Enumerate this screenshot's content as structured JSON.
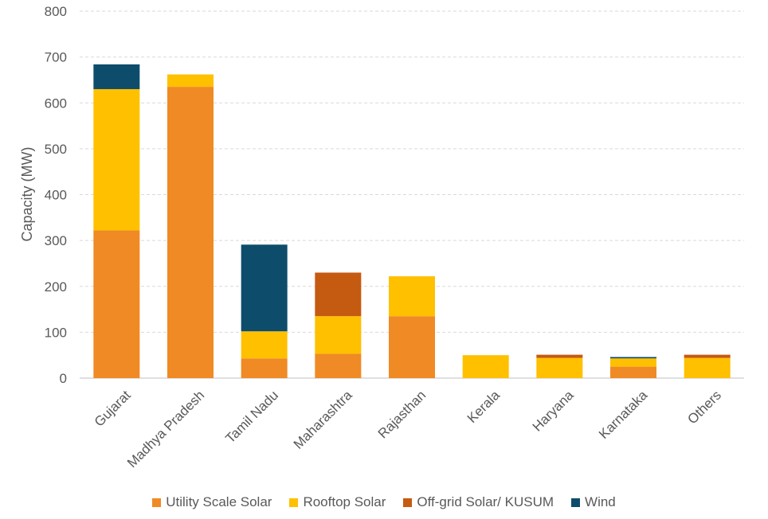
{
  "chart_data": {
    "type": "bar",
    "stacked": true,
    "ylabel": "Capacity (MW)",
    "ylim": [
      0,
      800
    ],
    "yticks": [
      0,
      100,
      200,
      300,
      400,
      500,
      600,
      700,
      800
    ],
    "grid": true,
    "legend_position": "bottom",
    "categories": [
      "Gujarat",
      "Madhya Pradesh",
      "Tamil Nadu",
      "Maharashtra",
      "Rajasthan",
      "Kerala",
      "Haryana",
      "Karnataka",
      "Others"
    ],
    "series": [
      {
        "name": "Utility Scale Solar",
        "color": "#F08A24",
        "values": [
          322,
          635,
          43,
          53,
          135,
          0,
          0,
          25,
          0
        ]
      },
      {
        "name": "Rooftop Solar",
        "color": "#FFC000",
        "values": [
          308,
          27,
          59,
          82,
          87,
          50,
          44,
          18,
          44
        ]
      },
      {
        "name": "Off-grid Solar/ KUSUM",
        "color": "#C55A11",
        "values": [
          0,
          0,
          0,
          95,
          0,
          0,
          7,
          0,
          7
        ]
      },
      {
        "name": "Wind",
        "color": "#0E4C6B",
        "values": [
          54,
          0,
          189,
          0,
          0,
          0,
          0,
          3,
          0
        ]
      }
    ]
  }
}
